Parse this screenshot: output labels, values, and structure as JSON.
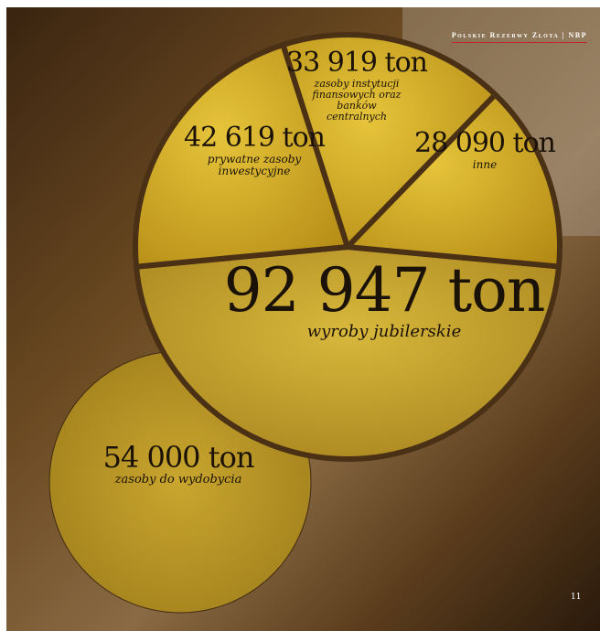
{
  "header": "Polskie Rezerwy Złota | NBP",
  "page_number": "11",
  "chart_data": [
    {
      "type": "pie",
      "categories": [
        "wyroby jubilerskie",
        "prywatne zasoby inwestycyjne",
        "zasoby instytucji finansowych oraz banków centralnych",
        "inne"
      ],
      "values": [
        92947,
        42619,
        33919,
        28090
      ],
      "value_labels": [
        "92 947 ton",
        "42 619 ton",
        "33 919 ton",
        "28 090 ton"
      ]
    },
    {
      "type": "pie",
      "categories": [
        "zasoby do wydobycia"
      ],
      "values": [
        54000
      ],
      "value_labels": [
        "54 000 ton"
      ]
    }
  ]
}
